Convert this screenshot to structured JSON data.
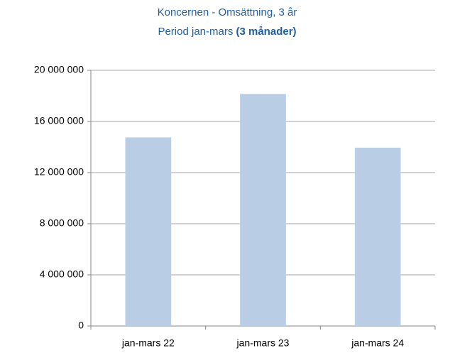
{
  "chart_data": {
    "type": "bar",
    "title": "Koncernen - Omsättning, 3 år",
    "subtitle": "Period jan-mars",
    "subtitle_bold": "(3 månader)",
    "categories": [
      "jan-mars 22",
      "jan-mars 23",
      "jan-mars 24"
    ],
    "values": [
      14750000,
      18150000,
      13950000
    ],
    "color": "#b9cde5",
    "ylim": [
      0,
      20000000
    ],
    "yticks": [
      0,
      {
        "value": 4000000,
        "label": "4 000 000"
      },
      {
        "value": 8000000,
        "label": "8 000 000"
      },
      {
        "value": 12000000,
        "label": "12 000 000"
      },
      {
        "value": 16000000,
        "label": "16 000 000"
      },
      {
        "value": 20000000,
        "label": "20 000 000"
      }
    ],
    "grid": true
  }
}
